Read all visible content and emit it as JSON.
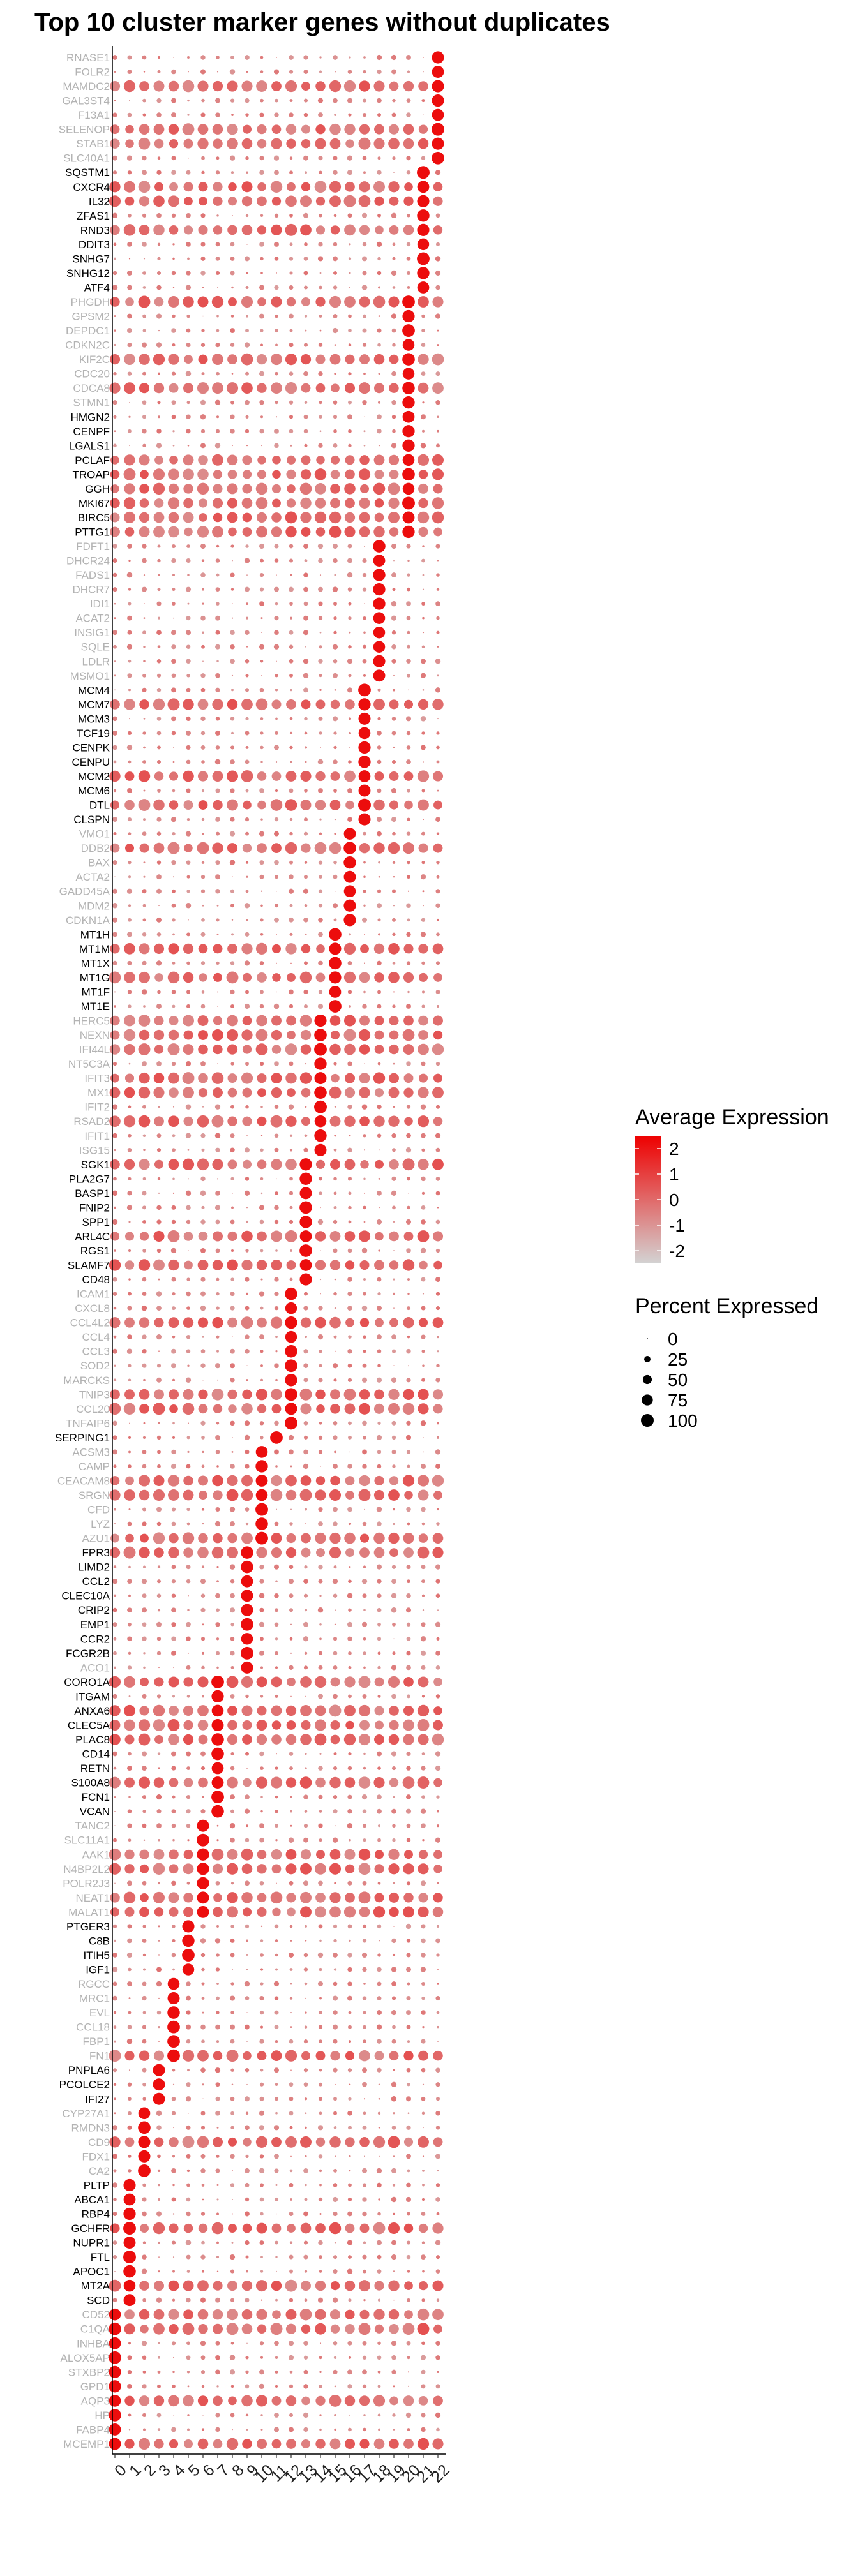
{
  "chart_data": {
    "type": "scatter",
    "title": "Top 10 cluster marker genes without duplicates",
    "xlabel": "",
    "ylabel": "",
    "clusters": [
      "0",
      "1",
      "2",
      "3",
      "4",
      "5",
      "6",
      "7",
      "8",
      "9",
      "10",
      "11",
      "12",
      "13",
      "14",
      "15",
      "16",
      "17",
      "18",
      "19",
      "20",
      "21",
      "22"
    ],
    "gene_blocks": [
      {
        "color": "#b3b3b3",
        "genes": [
          "RNASE1",
          "FOLR2",
          "MAMDC2",
          "GAL3ST4",
          "F13A1",
          "SELENOP",
          "STAB1",
          "SLC40A1"
        ],
        "peak": 22
      },
      {
        "color": "#000000",
        "genes": [
          "SQSTM1",
          "CXCR4",
          "IL32",
          "ZFAS1",
          "RND3",
          "DDIT3",
          "SNHG7",
          "SNHG12",
          "ATF4"
        ],
        "peak": 21
      },
      {
        "color": "#b3b3b3",
        "genes": [
          "PHGDH",
          "GPSM2",
          "DEPDC1",
          "CDKN2C",
          "KIF2C",
          "CDC20",
          "CDCA8",
          "STMN1"
        ],
        "peak": 20
      },
      {
        "color": "#000000",
        "genes": [
          "HMGN2",
          "CENPF",
          "LGALS1",
          "PCLAF",
          "TROAP",
          "GGH",
          "MKI67",
          "BIRC5",
          "PTTG1"
        ],
        "peak": 20
      },
      {
        "color": "#b3b3b3",
        "genes": [
          "FDFT1",
          "DHCR24",
          "FADS1",
          "DHCR7",
          "IDI1",
          "ACAT2",
          "INSIG1",
          "SQLE",
          "LDLR",
          "MSMO1"
        ],
        "peak": 18
      },
      {
        "color": "#000000",
        "genes": [
          "MCM4",
          "MCM7",
          "MCM3",
          "TCF19",
          "CENPK",
          "CENPU",
          "MCM2",
          "MCM6",
          "DTL",
          "CLSPN"
        ],
        "peak": 17
      },
      {
        "color": "#b3b3b3",
        "genes": [
          "VMO1",
          "DDB2",
          "BAX",
          "ACTA2",
          "GADD45A",
          "MDM2",
          "CDKN1A"
        ],
        "peak": 16
      },
      {
        "color": "#000000",
        "genes": [
          "MT1H",
          "MT1M",
          "MT1X",
          "MT1G",
          "MT1F",
          "MT1E"
        ],
        "peak": 15
      },
      {
        "color": "#b3b3b3",
        "genes": [
          "HERC5",
          "NEXN",
          "IFI44L",
          "NT5C3A",
          "IFIT3",
          "MX1",
          "IFIT2",
          "RSAD2",
          "IFIT1",
          "ISG15"
        ],
        "peak": 14
      },
      {
        "color": "#000000",
        "genes": [
          "SGK1",
          "PLA2G7",
          "BASP1",
          "FNIP2",
          "SPP1",
          "ARL4C",
          "RGS1",
          "SLAMF7",
          "CD48"
        ],
        "peak": 13
      },
      {
        "color": "#b3b3b3",
        "genes": [
          "ICAM1",
          "CXCL8",
          "CCL4L2",
          "CCL4",
          "CCL3",
          "SOD2",
          "MARCKS",
          "TNIP3",
          "CCL20",
          "TNFAIP6"
        ],
        "peak": 12
      },
      {
        "color": "#000000",
        "genes": [
          "SERPING1"
        ],
        "peak": 11
      },
      {
        "color": "#b3b3b3",
        "genes": [
          "ACSM3",
          "CAMP",
          "CEACAM8",
          "SRGN",
          "CFD",
          "LYZ",
          "AZU1"
        ],
        "peak": 10
      },
      {
        "color": "#000000",
        "genes": [
          "FPR3",
          "LIMD2",
          "CCL2",
          "CLEC10A",
          "CRIP2",
          "EMP1",
          "CCR2",
          "FCGR2B"
        ],
        "peak": 9
      },
      {
        "color": "#b3b3b3",
        "genes": [
          "ACO1"
        ],
        "peak": 9
      },
      {
        "color": "#000000",
        "genes": [
          "CORO1A",
          "ITGAM",
          "ANXA6",
          "CLEC5A",
          "PLAC8",
          "CD14",
          "RETN",
          "S100A8",
          "FCN1",
          "VCAN"
        ],
        "peak": 7
      },
      {
        "color": "#b3b3b3",
        "genes": [
          "TANC2",
          "SLC11A1",
          "AAK1",
          "N4BP2L2",
          "POLR2J3",
          "NEAT1",
          "MALAT1"
        ],
        "peak": 6
      },
      {
        "color": "#000000",
        "genes": [
          "PTGER3",
          "C8B",
          "ITIH5",
          "IGF1"
        ],
        "peak": 5
      },
      {
        "color": "#b3b3b3",
        "genes": [
          "RGCC",
          "MRC1",
          "EVL",
          "CCL18",
          "FBP1",
          "FN1"
        ],
        "peak": 4
      },
      {
        "color": "#000000",
        "genes": [
          "PNPLA6",
          "PCOLCE2",
          "IFI27"
        ],
        "peak": 3
      },
      {
        "color": "#b3b3b3",
        "genes": [
          "CYP27A1",
          "RMDN3",
          "CD9",
          "FDX1",
          "CA2"
        ],
        "peak": 2
      },
      {
        "color": "#000000",
        "genes": [
          "PLTP",
          "ABCA1",
          "RBP4",
          "GCHFR",
          "NUPR1",
          "FTL",
          "APOC1",
          "MT2A",
          "SCD"
        ],
        "peak": 1
      },
      {
        "color": "#b3b3b3",
        "genes": [
          "CD52",
          "C1QA",
          "INHBA",
          "ALOX5AP",
          "STXBP2",
          "GPD1",
          "AQP3",
          "HP",
          "FABP4",
          "MCEMP1"
        ],
        "peak": 0
      }
    ],
    "color_scale": {
      "min": -2.5,
      "max": 2.5,
      "low_color": "#d3d3d3",
      "high_color": "#ee0000"
    },
    "size_scale": {
      "min": 0,
      "max": 100
    },
    "legends": [
      {
        "title": "Average Expression",
        "ticks": [
          "2",
          "1",
          "0",
          "-1",
          "-2"
        ],
        "tick_values": [
          2,
          1,
          0,
          -1,
          -2
        ]
      },
      {
        "title": "Percent Expressed",
        "ticks": [
          "0",
          "25",
          "50",
          "75",
          "100"
        ],
        "tick_values": [
          0,
          25,
          50,
          75,
          100
        ]
      }
    ],
    "legend_position": "right",
    "grid": false
  }
}
